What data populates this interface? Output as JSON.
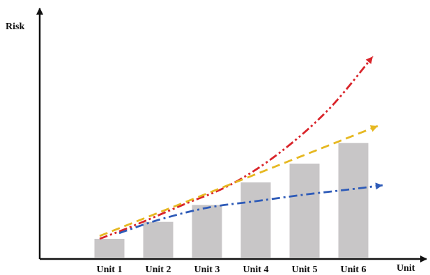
{
  "chart_data": {
    "type": "bar",
    "title": "",
    "xlabel": "Unit",
    "ylabel": "Risk",
    "categories": [
      "Unit 1",
      "Unit 2",
      "Unit 3",
      "Unit 4",
      "Unit 5",
      "Unit 6"
    ],
    "values": [
      1,
      1.9,
      2.8,
      4,
      5,
      6.1
    ],
    "ylim": [
      0,
      12.8
    ],
    "grid": false,
    "bar_color": "#c8c6c7",
    "trend_lines": [
      {
        "style": "dash-dot-dot",
        "color": "#d9242a",
        "points": [
          [
            0.8,
            1.0
          ],
          [
            1.5,
            1.7
          ],
          [
            2.5,
            2.8
          ],
          [
            3.5,
            3.9
          ],
          [
            4.5,
            5.6
          ],
          [
            5.5,
            7.9
          ],
          [
            6.4,
            10.7
          ]
        ]
      },
      {
        "style": "dashed",
        "color": "#e6b821",
        "points": [
          [
            0.8,
            1.15
          ],
          [
            6.5,
            7.0
          ]
        ]
      },
      {
        "style": "dash-dot",
        "color": "#2e5bb8",
        "points": [
          [
            1.2,
            1.3
          ],
          [
            2.0,
            2.0
          ],
          [
            3.0,
            2.65
          ],
          [
            4.0,
            3.0
          ],
          [
            5.0,
            3.35
          ],
          [
            6.0,
            3.65
          ],
          [
            6.6,
            3.85
          ]
        ]
      }
    ]
  }
}
